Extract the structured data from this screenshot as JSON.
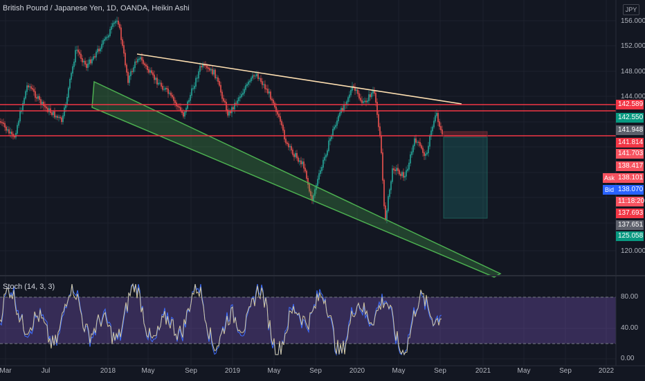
{
  "chart": {
    "title": "British Pound / Japanese Yen, 1D, OANDA, Heikin Ashi",
    "currency": "JPY",
    "indicator_label": "Stoch (14, 3, 3)",
    "price_axis_ticks": [
      "156.000",
      "152.000",
      "148.000",
      "144.000",
      "120.000"
    ],
    "stoch_axis_ticks": [
      "80.00",
      "40.00",
      "0.00"
    ],
    "time_axis_ticks": [
      "Mar",
      "Jul",
      "2018",
      "May",
      "Sep",
      "2019",
      "May",
      "Sep",
      "2020",
      "May",
      "Sep",
      "2021",
      "May",
      "Sep",
      "2022"
    ],
    "price_tags": [
      {
        "label": "142.589",
        "color": "#f23645"
      },
      {
        "label": "142.550",
        "color": "#089981"
      },
      {
        "label": "141.948",
        "color": "#5d606b"
      },
      {
        "label": "141.814",
        "color": "#f23645"
      },
      {
        "label": "141.703",
        "color": "#f7525f"
      },
      {
        "label": "138.417",
        "color": "#f7525f"
      },
      {
        "label": "138.101",
        "color": "#f7525f"
      },
      {
        "label": "138.070",
        "color": "#2962ff"
      },
      {
        "label": "11:18:20",
        "color": "#f7525f"
      },
      {
        "label": "137.693",
        "color": "#f23645"
      },
      {
        "label": "137.651",
        "color": "#5d606b"
      },
      {
        "label": "125.058",
        "color": "#089981"
      }
    ],
    "ask_label": "Ask",
    "bid_label": "Bid",
    "colors": {
      "up": "#26a69a",
      "down": "#ef5350",
      "resistance": "#f23645",
      "trendline": "#ffe0b2",
      "channel": "#4caf50",
      "stoch_k": "#d4c9a0",
      "stoch_d": "#3f6fff",
      "stoch_band": "#7e57c2"
    }
  }
}
